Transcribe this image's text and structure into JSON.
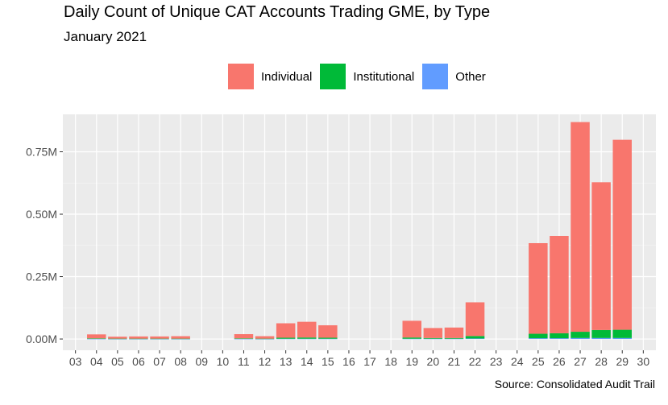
{
  "chart_data": {
    "type": "bar",
    "stacked": true,
    "title": "Daily Count of Unique CAT Accounts Trading GME, by Type",
    "subtitle": "January 2021",
    "caption": "Source: Consolidated Audit Trail",
    "xlabel": "",
    "ylabel": "",
    "x_ticks": [
      "03",
      "04",
      "05",
      "06",
      "07",
      "08",
      "09",
      "10",
      "11",
      "12",
      "13",
      "14",
      "15",
      "16",
      "17",
      "18",
      "19",
      "20",
      "21",
      "22",
      "23",
      "24",
      "25",
      "26",
      "27",
      "28",
      "29",
      "30"
    ],
    "y_ticks": [
      0,
      0.25,
      0.5,
      0.75
    ],
    "y_tick_labels": [
      "0.00M",
      "0.25M",
      "0.50M",
      "0.75M"
    ],
    "ylim": [
      -0.045,
      0.9
    ],
    "xlim": [
      2.4,
      30.6
    ],
    "legend_position": "top",
    "grid": true,
    "series": [
      {
        "name": "Individual",
        "color": "#F8766D"
      },
      {
        "name": "Institutional",
        "color": "#00BA38"
      },
      {
        "name": "Other",
        "color": "#619CFF"
      }
    ],
    "bars": [
      {
        "day": 4,
        "Individual": 0.016,
        "Institutional": 0.002,
        "Other": 0.0005
      },
      {
        "day": 5,
        "Individual": 0.008,
        "Institutional": 0.001,
        "Other": 0.0003
      },
      {
        "day": 6,
        "Individual": 0.009,
        "Institutional": 0.001,
        "Other": 0.0003
      },
      {
        "day": 7,
        "Individual": 0.009,
        "Institutional": 0.001,
        "Other": 0.0003
      },
      {
        "day": 8,
        "Individual": 0.01,
        "Institutional": 0.001,
        "Other": 0.0003
      },
      {
        "day": 11,
        "Individual": 0.017,
        "Institutional": 0.002,
        "Other": 0.0005
      },
      {
        "day": 12,
        "Individual": 0.01,
        "Institutional": 0.001,
        "Other": 0.0003
      },
      {
        "day": 13,
        "Individual": 0.058,
        "Institutional": 0.004,
        "Other": 0.001
      },
      {
        "day": 14,
        "Individual": 0.063,
        "Institutional": 0.005,
        "Other": 0.001
      },
      {
        "day": 15,
        "Individual": 0.05,
        "Institutional": 0.004,
        "Other": 0.001
      },
      {
        "day": 19,
        "Individual": 0.067,
        "Institutional": 0.005,
        "Other": 0.001
      },
      {
        "day": 20,
        "Individual": 0.04,
        "Institutional": 0.003,
        "Other": 0.001
      },
      {
        "day": 21,
        "Individual": 0.042,
        "Institutional": 0.003,
        "Other": 0.001
      },
      {
        "day": 22,
        "Individual": 0.135,
        "Institutional": 0.01,
        "Other": 0.002
      },
      {
        "day": 25,
        "Individual": 0.363,
        "Institutional": 0.018,
        "Other": 0.003
      },
      {
        "day": 26,
        "Individual": 0.39,
        "Institutional": 0.02,
        "Other": 0.003
      },
      {
        "day": 27,
        "Individual": 0.84,
        "Institutional": 0.025,
        "Other": 0.004
      },
      {
        "day": 28,
        "Individual": 0.592,
        "Institutional": 0.032,
        "Other": 0.004
      },
      {
        "day": 29,
        "Individual": 0.761,
        "Institutional": 0.033,
        "Other": 0.004
      }
    ]
  }
}
